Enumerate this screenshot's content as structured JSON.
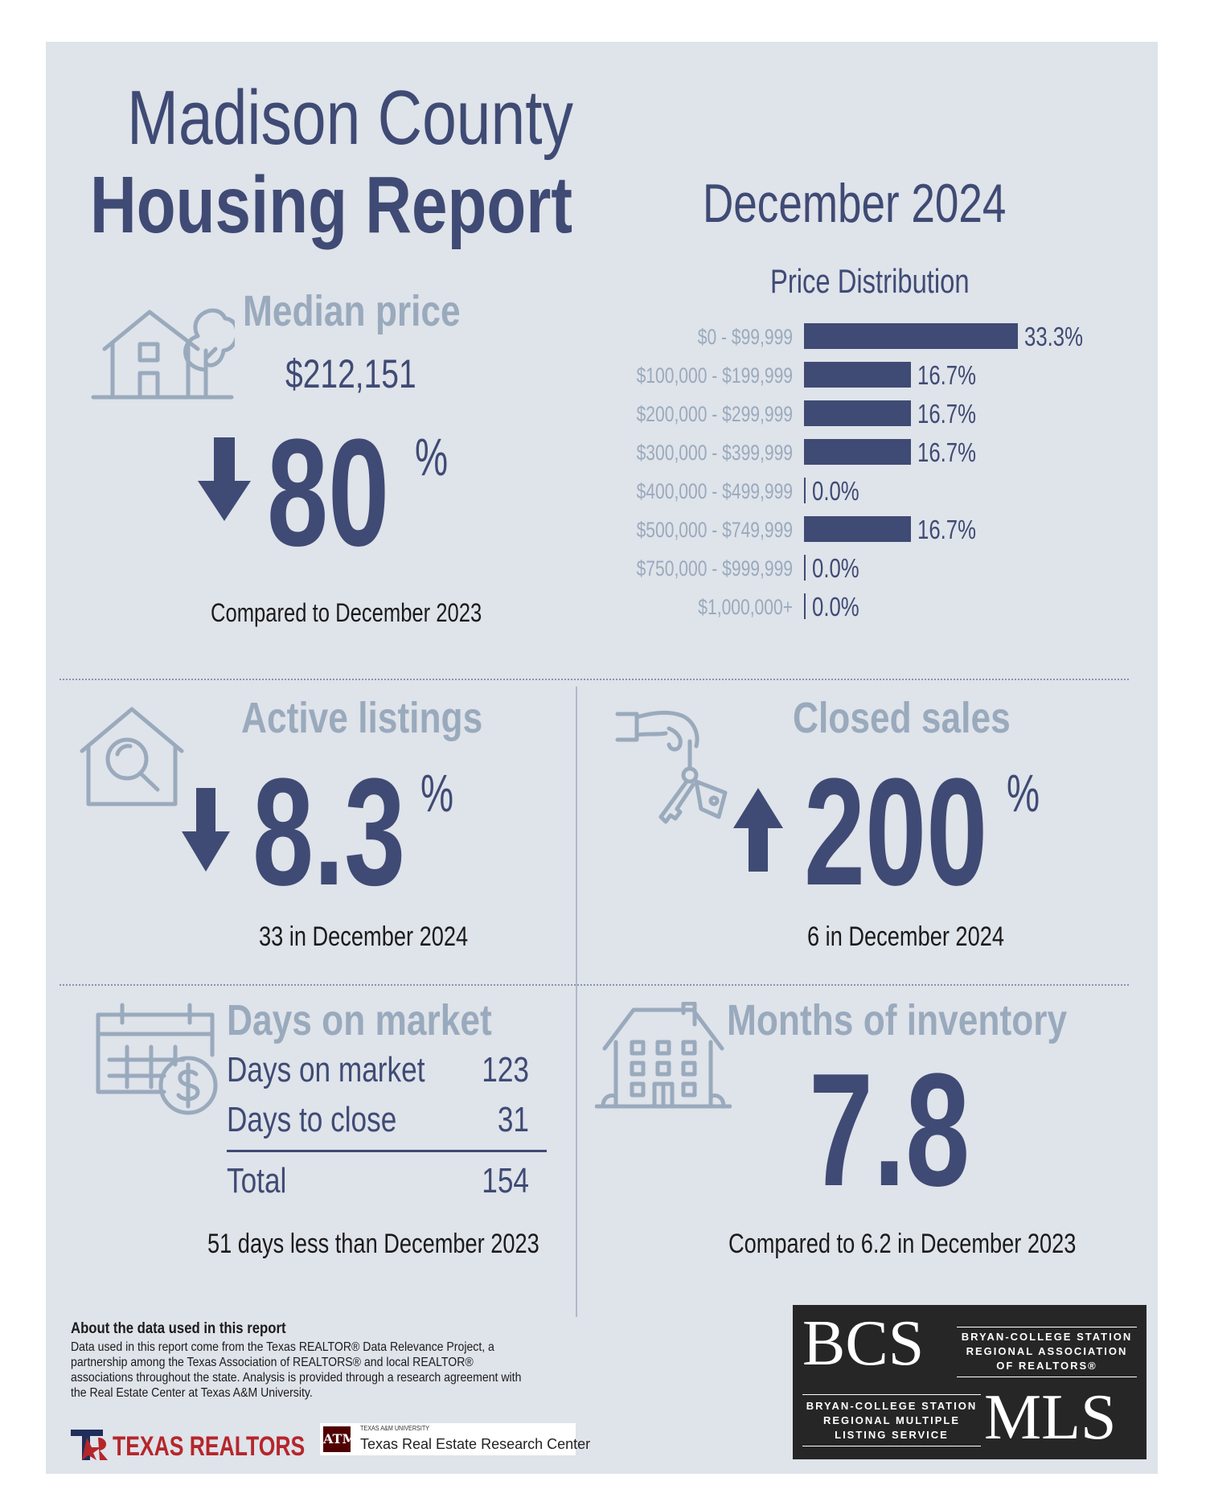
{
  "header": {
    "title_line1": "Madison County",
    "title_line2": "Housing Report",
    "period": "December 2024"
  },
  "median_price": {
    "label": "Median price",
    "value": "$212,151",
    "change_direction": "down",
    "change_number": "80",
    "percent_sign": "%",
    "note": "Compared to December 2023"
  },
  "price_distribution": {
    "title": "Price Distribution",
    "bar_color": "#3f4b74",
    "max_pct": 33.3,
    "buckets": [
      {
        "label": "$0 - $99,999",
        "value": 33.3,
        "display": "33.3%"
      },
      {
        "label": "$100,000 - $199,999",
        "value": 16.7,
        "display": "16.7%"
      },
      {
        "label": "$200,000 - $299,999",
        "value": 16.7,
        "display": "16.7%"
      },
      {
        "label": "$300,000 - $399,999",
        "value": 16.7,
        "display": "16.7%"
      },
      {
        "label": "$400,000 - $499,999",
        "value": 0.0,
        "display": "0.0%"
      },
      {
        "label": "$500,000 - $749,999",
        "value": 16.7,
        "display": "16.7%"
      },
      {
        "label": "$750,000 - $999,999",
        "value": 0.0,
        "display": "0.0%"
      },
      {
        "label": "$1,000,000+",
        "value": 0.0,
        "display": "0.0%"
      }
    ]
  },
  "active_listings": {
    "label": "Active listings",
    "change_direction": "down",
    "change_number": "8.3",
    "percent_sign": "%",
    "note": "33 in December 2024"
  },
  "closed_sales": {
    "label": "Closed sales",
    "change_direction": "up",
    "change_number": "200",
    "percent_sign": "%",
    "note": "6 in December 2024"
  },
  "days_on_market": {
    "label": "Days on market",
    "rows": [
      {
        "label": "Days on market",
        "value": "123"
      },
      {
        "label": "Days to close",
        "value": "31"
      }
    ],
    "total_label": "Total",
    "total_value": "154",
    "note": "51 days less than December 2023"
  },
  "months_of_inventory": {
    "label": "Months of inventory",
    "value": "7.8",
    "note": "Compared to 6.2 in December 2023"
  },
  "footer": {
    "about_title": "About the data used in this report",
    "about_body": "Data used in this report come from the Texas REALTOR® Data Relevance Project, a partnership among the Texas Association of REALTORS® and local REALTOR® associations throughout the state. Analysis is provided through a research agreement with the Real Estate Center at Texas A&M University.",
    "texas_realtors": "TEXAS REALTORS",
    "tamu_small": "TEXAS A&M UNIVERSITY",
    "tamu_name": "Texas Real Estate Research Center",
    "bcs_logo": "BCS",
    "bcs_assoc_line1": "BRYAN-COLLEGE STATION",
    "bcs_assoc_line2": "REGIONAL ASSOCIATION",
    "bcs_assoc_line3": "OF REALTORS®",
    "mls_line1": "BRYAN-COLLEGE STATION",
    "mls_line2": "REGIONAL MULTIPLE",
    "mls_line3": "LISTING SERVICE",
    "mls_logo": "MLS"
  },
  "colors": {
    "panel": "#dfe3ea",
    "navy": "#3f4b74",
    "muted": "#9aaabd",
    "icon": "#9aaabd"
  }
}
